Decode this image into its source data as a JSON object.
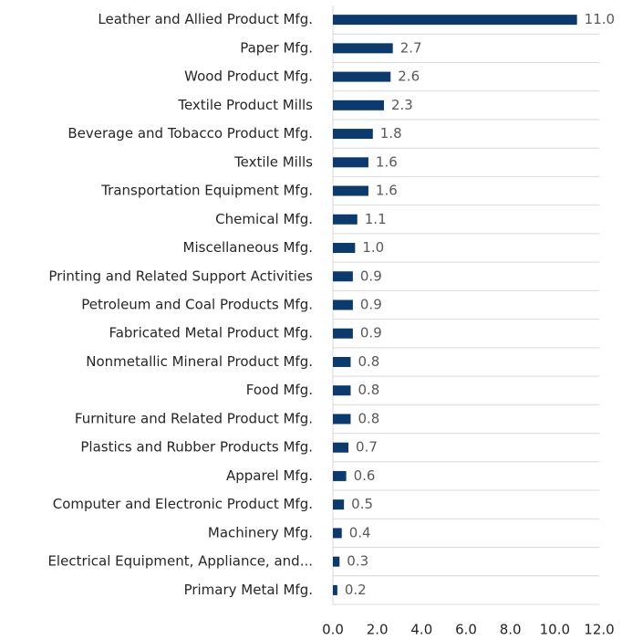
{
  "chart_data": {
    "type": "hbar",
    "categories": [
      "Leather and Allied Product Mfg.",
      "Paper Mfg.",
      "Wood Product Mfg.",
      "Textile Product Mills",
      "Beverage and Tobacco Product Mfg.",
      "Textile Mills",
      "Transportation Equipment Mfg.",
      "Chemical Mfg.",
      "Miscellaneous Mfg.",
      "Printing and Related Support Activities",
      "Petroleum and Coal Products Mfg.",
      "Fabricated Metal Product Mfg.",
      "Nonmetallic Mineral Product Mfg.",
      "Food Mfg.",
      "Furniture and Related Product Mfg.",
      "Plastics and Rubber Products Mfg.",
      "Apparel Mfg.",
      "Computer and Electronic Product Mfg.",
      "Machinery Mfg.",
      "Electrical Equipment, Appliance, and...",
      "Primary Metal Mfg."
    ],
    "values": [
      11.0,
      2.7,
      2.6,
      2.3,
      1.8,
      1.6,
      1.6,
      1.1,
      1.0,
      0.9,
      0.9,
      0.9,
      0.8,
      0.8,
      0.8,
      0.7,
      0.6,
      0.5,
      0.4,
      0.3,
      0.2
    ],
    "value_labels": [
      "11.0",
      "2.7",
      "2.6",
      "2.3",
      "1.8",
      "1.6",
      "1.6",
      "1.1",
      "1.0",
      "0.9",
      "0.9",
      "0.9",
      "0.8",
      "0.8",
      "0.8",
      "0.7",
      "0.6",
      "0.5",
      "0.4",
      "0.3",
      "0.2"
    ],
    "color": "#0b3a6e",
    "xlim": [
      0,
      12
    ],
    "xticks": [
      {
        "value": 0,
        "label": "0.0"
      },
      {
        "value": 2,
        "label": "2.0"
      },
      {
        "value": 4,
        "label": "4.0"
      },
      {
        "value": 6,
        "label": "6.0"
      },
      {
        "value": 8,
        "label": "8.0"
      },
      {
        "value": 10,
        "label": "10.0"
      },
      {
        "value": 12,
        "label": "12.0"
      }
    ]
  }
}
